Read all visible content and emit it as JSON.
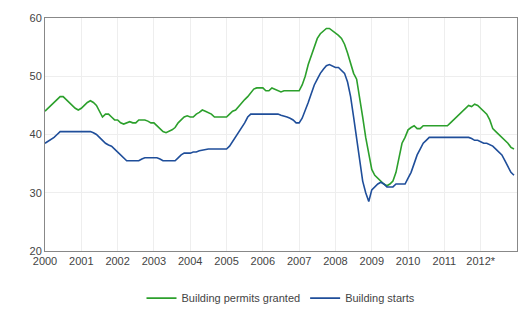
{
  "chart_data": {
    "type": "line",
    "x": [
      2000.0,
      2000.083,
      2000.167,
      2000.25,
      2000.333,
      2000.417,
      2000.5,
      2000.583,
      2000.667,
      2000.75,
      2000.833,
      2000.917,
      2001.0,
      2001.083,
      2001.167,
      2001.25,
      2001.333,
      2001.417,
      2001.5,
      2001.583,
      2001.667,
      2001.75,
      2001.833,
      2001.917,
      2002.0,
      2002.083,
      2002.167,
      2002.25,
      2002.333,
      2002.417,
      2002.5,
      2002.583,
      2002.667,
      2002.75,
      2002.833,
      2002.917,
      2003.0,
      2003.083,
      2003.167,
      2003.25,
      2003.333,
      2003.417,
      2003.5,
      2003.583,
      2003.667,
      2003.75,
      2003.833,
      2003.917,
      2004.0,
      2004.083,
      2004.167,
      2004.25,
      2004.333,
      2004.417,
      2004.5,
      2004.583,
      2004.667,
      2004.75,
      2004.833,
      2004.917,
      2005.0,
      2005.083,
      2005.167,
      2005.25,
      2005.333,
      2005.417,
      2005.5,
      2005.583,
      2005.667,
      2005.75,
      2005.833,
      2005.917,
      2006.0,
      2006.083,
      2006.167,
      2006.25,
      2006.333,
      2006.417,
      2006.5,
      2006.583,
      2006.667,
      2006.75,
      2006.833,
      2006.917,
      2007.0,
      2007.083,
      2007.167,
      2007.25,
      2007.333,
      2007.417,
      2007.5,
      2007.583,
      2007.667,
      2007.75,
      2007.833,
      2007.917,
      2008.0,
      2008.083,
      2008.167,
      2008.25,
      2008.333,
      2008.417,
      2008.5,
      2008.583,
      2008.667,
      2008.75,
      2008.833,
      2008.917,
      2009.0,
      2009.083,
      2009.167,
      2009.25,
      2009.333,
      2009.417,
      2009.5,
      2009.583,
      2009.667,
      2009.75,
      2009.833,
      2009.917,
      2010.0,
      2010.083,
      2010.167,
      2010.25,
      2010.333,
      2010.417,
      2010.5,
      2010.583,
      2010.667,
      2010.75,
      2010.833,
      2010.917,
      2011.0,
      2011.083,
      2011.167,
      2011.25,
      2011.333,
      2011.417,
      2011.5,
      2011.583,
      2011.667,
      2011.75,
      2011.833,
      2011.917,
      2012.0,
      2012.083,
      2012.167,
      2012.25,
      2012.333,
      2012.417,
      2012.5,
      2012.583,
      2012.667,
      2012.75,
      2012.833,
      2012.917
    ],
    "series": [
      {
        "name": "Building permits granted",
        "color": "#2ca02c",
        "values": [
          44.0,
          44.5,
          45.0,
          45.5,
          46.0,
          46.5,
          46.5,
          46.0,
          45.5,
          45.0,
          44.5,
          44.2,
          44.5,
          45.0,
          45.5,
          45.8,
          45.5,
          45.0,
          44.0,
          43.0,
          43.5,
          43.5,
          43.0,
          42.5,
          42.5,
          42.0,
          41.8,
          42.0,
          42.2,
          42.0,
          42.0,
          42.5,
          42.5,
          42.5,
          42.3,
          42.0,
          42.0,
          41.5,
          41.0,
          40.5,
          40.3,
          40.5,
          40.8,
          41.2,
          42.0,
          42.5,
          43.0,
          43.2,
          43.0,
          43.0,
          43.5,
          43.8,
          44.2,
          44.0,
          43.8,
          43.5,
          43.0,
          43.0,
          43.0,
          43.0,
          43.0,
          43.5,
          44.0,
          44.2,
          44.8,
          45.5,
          46.0,
          46.5,
          47.2,
          47.8,
          48.0,
          48.0,
          48.0,
          47.5,
          47.5,
          48.0,
          47.8,
          47.5,
          47.3,
          47.5,
          47.5,
          47.5,
          47.5,
          47.5,
          47.5,
          48.5,
          50.0,
          52.0,
          53.5,
          55.0,
          56.5,
          57.3,
          57.8,
          58.2,
          58.2,
          57.8,
          57.5,
          57.0,
          56.5,
          55.5,
          54.0,
          52.0,
          50.5,
          49.5,
          46.5,
          43.0,
          39.5,
          36.5,
          34.0,
          33.0,
          32.5,
          32.0,
          31.5,
          31.2,
          31.5,
          32.0,
          33.5,
          36.0,
          38.5,
          39.5,
          40.8,
          41.2,
          41.5,
          41.0,
          41.0,
          41.5,
          41.5,
          41.5,
          41.5,
          41.5,
          41.5,
          41.5,
          41.5,
          41.5,
          42.0,
          42.5,
          43.0,
          43.5,
          44.0,
          44.5,
          45.0,
          44.8,
          45.2,
          45.0,
          44.5,
          44.0,
          43.5,
          42.5,
          41.0,
          40.5,
          40.0,
          39.5,
          39.0,
          38.5,
          37.8,
          37.5
        ]
      },
      {
        "name": "Building starts",
        "color": "#1f4e9a",
        "values": [
          38.5,
          38.8,
          39.2,
          39.5,
          40.0,
          40.5,
          40.5,
          40.5,
          40.5,
          40.5,
          40.5,
          40.5,
          40.5,
          40.5,
          40.5,
          40.5,
          40.3,
          40.0,
          39.5,
          39.0,
          38.5,
          38.2,
          38.0,
          37.5,
          37.0,
          36.5,
          36.0,
          35.5,
          35.5,
          35.5,
          35.5,
          35.5,
          35.8,
          36.0,
          36.0,
          36.0,
          36.0,
          36.0,
          35.8,
          35.5,
          35.5,
          35.5,
          35.5,
          35.5,
          36.0,
          36.5,
          36.8,
          36.8,
          36.8,
          37.0,
          37.0,
          37.2,
          37.3,
          37.5,
          37.5,
          37.5,
          37.5,
          37.5,
          37.5,
          37.5,
          37.5,
          38.0,
          38.8,
          39.5,
          40.2,
          41.0,
          42.0,
          43.0,
          43.5,
          43.5,
          43.5,
          43.5,
          43.5,
          43.5,
          43.5,
          43.5,
          43.5,
          43.5,
          43.3,
          43.2,
          43.0,
          42.8,
          42.5,
          42.0,
          42.0,
          42.8,
          44.0,
          45.5,
          47.0,
          48.5,
          49.5,
          50.5,
          51.2,
          51.8,
          52.0,
          51.8,
          51.5,
          51.5,
          51.0,
          50.5,
          49.0,
          46.5,
          43.0,
          39.5,
          35.5,
          32.0,
          30.0,
          28.5,
          30.5,
          31.0,
          31.5,
          31.8,
          31.5,
          31.0,
          31.0,
          31.0,
          31.5,
          31.5,
          31.5,
          31.5,
          32.5,
          33.5,
          35.0,
          36.5,
          37.5,
          38.5,
          39.0,
          39.5,
          39.5,
          39.5,
          39.5,
          39.5,
          39.5,
          39.5,
          39.5,
          39.5,
          39.5,
          39.5,
          39.5,
          39.5,
          39.5,
          39.3,
          39.0,
          39.0,
          38.8,
          38.5,
          38.5,
          38.2,
          38.0,
          37.5,
          37.0,
          36.5,
          35.5,
          34.5,
          33.5,
          33.0
        ]
      }
    ],
    "xlim": [
      2000,
      2013.0
    ],
    "xticks": [
      2000,
      2001,
      2002,
      2003,
      2004,
      2005,
      2006,
      2007,
      2008,
      2009,
      2010,
      2011,
      {
        "value": 2012,
        "label": "2012*"
      }
    ],
    "ylim": [
      20,
      60
    ],
    "yticks": [
      20,
      30,
      40,
      50,
      60
    ],
    "grid": true,
    "legend": "bottom"
  }
}
